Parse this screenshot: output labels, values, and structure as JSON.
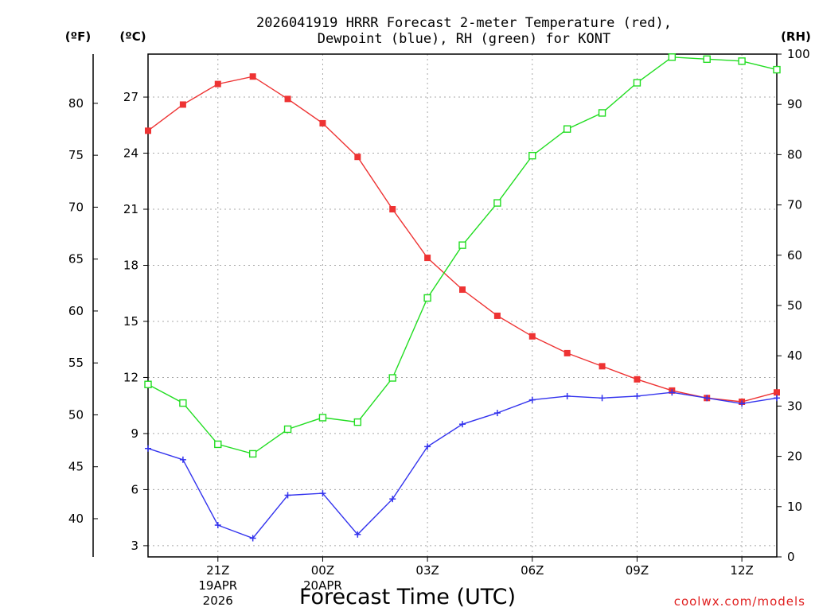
{
  "chart_data": {
    "type": "line",
    "title_lines": [
      "2026041919 HRRR Forecast 2-meter Temperature (red),",
      "Dewpoint (blue), RH (green) for KONT"
    ],
    "xlabel": "Forecast Time (UTC)",
    "units": {
      "fahrenheit": "(ºF)",
      "celsius": "(ºC)",
      "rh": "(RH)"
    },
    "credit": "coolwx.com/models",
    "x_hours": [
      0,
      1,
      2,
      3,
      4,
      5,
      6,
      7,
      8,
      9,
      10,
      11,
      12,
      13,
      14,
      15,
      16,
      17,
      18
    ],
    "xlim": [
      0,
      18
    ],
    "x_ticks": [
      {
        "hour": 2,
        "lines": [
          "21Z",
          "19APR",
          "2026"
        ]
      },
      {
        "hour": 5,
        "lines": [
          "00Z",
          "20APR"
        ]
      },
      {
        "hour": 8,
        "lines": [
          "03Z"
        ]
      },
      {
        "hour": 11,
        "lines": [
          "06Z"
        ]
      },
      {
        "hour": 14,
        "lines": [
          "09Z"
        ]
      },
      {
        "hour": 17,
        "lines": [
          "12Z"
        ]
      }
    ],
    "celsius_axis": {
      "min": 2.4,
      "max": 29.3,
      "ticks": [
        3,
        6,
        9,
        12,
        15,
        18,
        21,
        24,
        27
      ]
    },
    "fahrenheit_ticks": [
      40,
      45,
      50,
      55,
      60,
      65,
      70,
      75,
      80
    ],
    "rh_axis": {
      "min": 0,
      "max": 100,
      "ticks": [
        0,
        10,
        20,
        30,
        40,
        50,
        60,
        70,
        80,
        90,
        100
      ]
    },
    "series": [
      {
        "name": "2-meter Temperature",
        "axis": "celsius",
        "color": "#ee3333",
        "marker": "filled-square",
        "values": [
          25.2,
          26.6,
          27.7,
          28.1,
          26.9,
          25.6,
          23.8,
          21.0,
          18.4,
          16.7,
          15.3,
          14.2,
          13.3,
          12.6,
          11.9,
          11.3,
          10.9,
          10.7,
          11.2
        ]
      },
      {
        "name": "Dewpoint",
        "axis": "celsius",
        "color": "#3333ee",
        "marker": "plus",
        "values": [
          8.2,
          7.6,
          4.1,
          3.4,
          5.7,
          5.8,
          3.6,
          5.5,
          8.3,
          9.5,
          10.1,
          10.8,
          11.0,
          10.9,
          11.0,
          11.2,
          10.9,
          10.6,
          10.9
        ]
      },
      {
        "name": "Relative Humidity",
        "axis": "rh",
        "color": "#22dd22",
        "marker": "open-square",
        "values": [
          34.3,
          30.6,
          22.4,
          20.5,
          25.4,
          27.7,
          26.8,
          35.6,
          51.5,
          62.0,
          70.4,
          79.8,
          85.1,
          88.3,
          94.3,
          99.4,
          99.0,
          98.6,
          96.9
        ]
      }
    ]
  }
}
